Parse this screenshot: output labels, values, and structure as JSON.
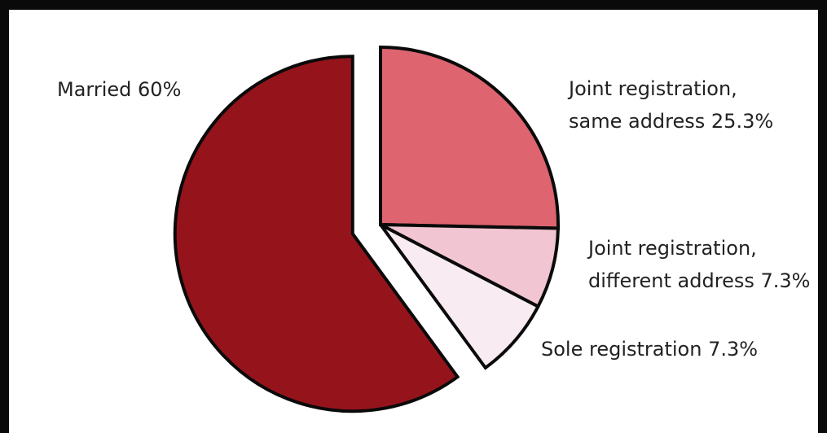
{
  "chart_data": {
    "type": "pie",
    "slices": [
      {
        "label_lines": [
          "Married 60%"
        ],
        "value": 60,
        "color": "#95141c",
        "exploded": true
      },
      {
        "label_lines": [
          "Joint registration,",
          "same address 25.3%"
        ],
        "value": 25.3,
        "color": "#de6470",
        "exploded": false
      },
      {
        "label_lines": [
          "Joint registration,",
          "different address 7.3%"
        ],
        "value": 7.3,
        "color": "#f1c5d1",
        "exploded": false
      },
      {
        "label_lines": [
          "Sole registration 7.3%"
        ],
        "value": 7.3,
        "color": "#f8ebf2",
        "exploded": false
      }
    ],
    "start_angle": "12 o'clock",
    "direction": "clockwise",
    "legend": "none (direct labels)"
  }
}
